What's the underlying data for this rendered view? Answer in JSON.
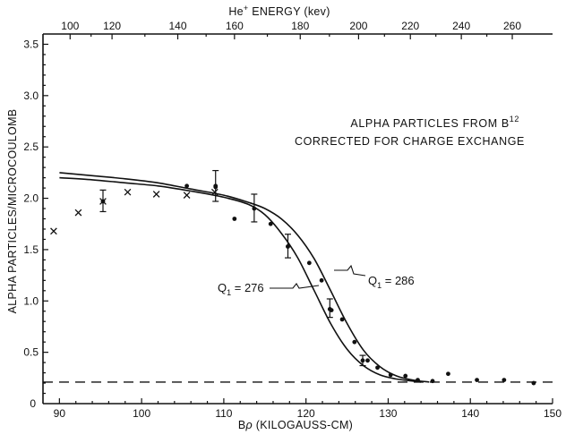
{
  "chart_data": {
    "type": "scatter",
    "title": "ALPHA PARTICLES FROM B",
    "title_superscript": "12",
    "subtitle": "CORRECTED FOR CHARGE EXCHANGE",
    "xlabel_main": "B",
    "xlabel_symbol": "ρ",
    "xlabel_rest": " (KILOGAUSS-CM)",
    "ylabel": "ALPHA PARTICLES/MICROCOULOMB",
    "top_axis_label_main": "He",
    "top_axis_label_sup": "+",
    "top_axis_label_rest": " ENERGY (kev)",
    "xlim": [
      88,
      150
    ],
    "ylim": [
      0,
      3.6
    ],
    "grid": false,
    "x_ticks": [
      90,
      100,
      110,
      120,
      130,
      140,
      150
    ],
    "x_tick_labels": [
      "90",
      "100",
      "110",
      "120",
      "130",
      "140",
      "150"
    ],
    "y_ticks": [
      0.5,
      1.0,
      1.5,
      2.0,
      2.5,
      3.0,
      3.5
    ],
    "y_tick_labels": [
      "0.5",
      "1.0",
      "1.5",
      "2.0",
      "2.5",
      "3.0",
      "3.5"
    ],
    "y_zero_label": "0",
    "top_ticks": [
      {
        "label": "100",
        "x": 91.3
      },
      {
        "label": "120",
        "x": 96.4
      },
      {
        "label": "140",
        "x": 104.4
      },
      {
        "label": "160",
        "x": 111.3
      },
      {
        "label": "180",
        "x": 119.3
      },
      {
        "label": "200",
        "x": 126.4
      },
      {
        "label": "220",
        "x": 132.7
      },
      {
        "label": "240",
        "x": 138.9
      },
      {
        "label": "260",
        "x": 145.1
      }
    ],
    "background_level": 0.21,
    "series": [
      {
        "name": "Q1 = 276",
        "label_main": "Q",
        "label_sub": "1",
        "label_rest": " = 276",
        "marker": "line",
        "x": [
          90,
          94,
          98,
          102,
          106,
          110,
          113,
          115,
          117,
          119,
          121,
          123,
          125,
          127,
          129,
          131,
          133,
          134
        ],
        "y": [
          2.2,
          2.18,
          2.15,
          2.12,
          2.07,
          2.01,
          1.94,
          1.84,
          1.66,
          1.42,
          1.1,
          0.78,
          0.53,
          0.37,
          0.28,
          0.24,
          0.22,
          0.21
        ]
      },
      {
        "name": "Q1 = 286",
        "label_main": "Q",
        "label_sub": "1",
        "label_rest": " = 286",
        "marker": "line",
        "x": [
          90,
          94,
          98,
          102,
          106,
          110,
          113,
          115,
          117,
          119,
          121,
          123,
          125,
          127,
          129,
          131,
          133,
          135
        ],
        "y": [
          2.25,
          2.22,
          2.19,
          2.15,
          2.09,
          2.03,
          1.96,
          1.9,
          1.8,
          1.64,
          1.41,
          1.1,
          0.78,
          0.52,
          0.36,
          0.27,
          0.23,
          0.21
        ]
      },
      {
        "marker": "dot",
        "x": [
          105.5,
          109,
          111.3,
          115.7,
          117.8,
          120.4,
          121.9,
          123.1,
          124.4,
          125.9,
          127.5,
          128.7,
          130.3,
          132.1,
          133.6,
          135.4,
          137.3,
          140.8,
          144.1,
          147.7
        ],
        "y": [
          2.12,
          2.11,
          1.8,
          1.75,
          1.53,
          1.37,
          1.2,
          0.91,
          0.82,
          0.6,
          0.42,
          0.35,
          0.28,
          0.27,
          0.23,
          0.22,
          0.29,
          0.23,
          0.23,
          0.2
        ]
      },
      {
        "marker": "cross",
        "x": [
          89.3,
          92.3,
          95.3,
          98.3,
          101.8,
          105.5,
          108.9
        ],
        "y": [
          1.68,
          1.86,
          1.97,
          2.06,
          2.04,
          2.03,
          2.06
        ]
      }
    ],
    "error_bars": [
      {
        "x": 95.3,
        "y": 1.97,
        "low": 1.87,
        "high": 2.08
      },
      {
        "x": 109.0,
        "y": 2.12,
        "low": 1.97,
        "high": 2.27
      },
      {
        "x": 113.7,
        "y": 1.9,
        "low": 1.77,
        "high": 2.04
      },
      {
        "x": 117.8,
        "y": 1.53,
        "low": 1.42,
        "high": 1.65
      },
      {
        "x": 122.9,
        "y": 0.92,
        "low": 0.84,
        "high": 1.02
      },
      {
        "x": 126.9,
        "y": 0.42,
        "low": 0.37,
        "high": 0.47
      }
    ]
  }
}
